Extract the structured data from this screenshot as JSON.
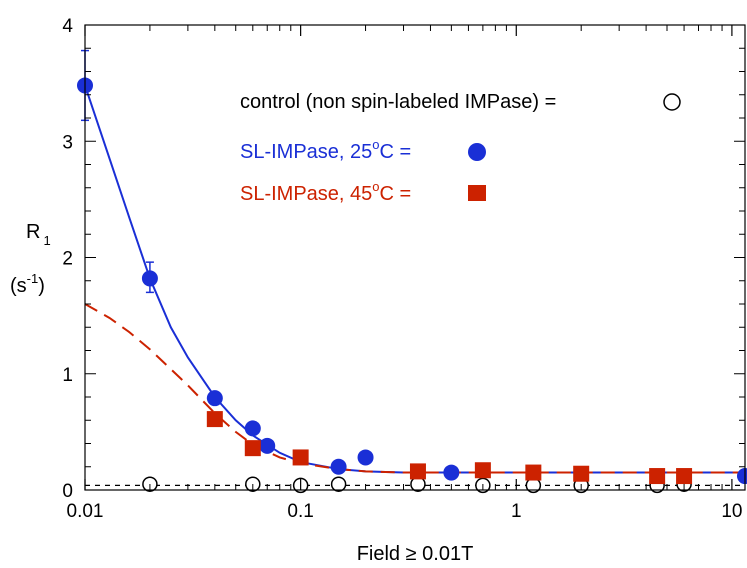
{
  "chart_data": {
    "type": "scatter",
    "title": "",
    "xlabel": "Field ≥ 0.01T",
    "ylabel": "R",
    "ylabel_sub": "1",
    "yunit_open": "(s",
    "yunit_sup": "-1",
    "yunit_close": ")",
    "x_scale": "log",
    "xlim": [
      0.01,
      11.5
    ],
    "ylim": [
      0,
      4
    ],
    "grid": false,
    "legend_position": "top-right",
    "x_ticks": [
      {
        "value": 0.01,
        "label": "0.01"
      },
      {
        "value": 0.1,
        "label": "0.1"
      },
      {
        "value": 1,
        "label": "1"
      },
      {
        "value": 10,
        "label": "10"
      }
    ],
    "y_ticks": [
      {
        "value": 0,
        "label": "0"
      },
      {
        "value": 1,
        "label": "1"
      },
      {
        "value": 2,
        "label": "2"
      },
      {
        "value": 3,
        "label": "3"
      },
      {
        "value": 4,
        "label": "4"
      }
    ],
    "series": [
      {
        "name": "control (non spin-labeled IMPase)",
        "marker": "open-circle",
        "color": "#000000",
        "x": [
          0.02,
          0.06,
          0.1,
          0.15,
          0.35,
          0.7,
          1.2,
          2.0,
          4.5,
          6.0,
          11.5
        ],
        "y": [
          0.05,
          0.05,
          0.04,
          0.05,
          0.05,
          0.04,
          0.04,
          0.04,
          0.04,
          0.05,
          0.12
        ]
      },
      {
        "name": "SL-IMPase, 25°C",
        "marker": "filled-circle",
        "color": "#1a2fd6",
        "x": [
          0.01,
          0.02,
          0.04,
          0.06,
          0.07,
          0.15,
          0.2,
          0.5,
          11.5
        ],
        "y": [
          3.48,
          1.82,
          0.79,
          0.53,
          0.38,
          0.2,
          0.28,
          0.15,
          0.12
        ],
        "error_bars": [
          {
            "x": 0.01,
            "low": 3.18,
            "high": 3.78
          },
          {
            "x": 0.02,
            "low": 1.7,
            "high": 1.96
          }
        ]
      },
      {
        "name": "SL-IMPase, 45°C",
        "marker": "filled-square",
        "color": "#cc2200",
        "x": [
          0.04,
          0.06,
          0.1,
          0.35,
          0.7,
          1.2,
          2.0,
          4.5,
          6.0
        ],
        "y": [
          0.61,
          0.36,
          0.28,
          0.16,
          0.17,
          0.15,
          0.14,
          0.12,
          0.12
        ]
      }
    ],
    "fit_curves": [
      {
        "style": "solid",
        "color": "#1a2fd6",
        "x": [
          0.01,
          0.013,
          0.016,
          0.02,
          0.025,
          0.03,
          0.04,
          0.05,
          0.06,
          0.08,
          0.1,
          0.15,
          0.2,
          0.3,
          0.5,
          1,
          2,
          5,
          11.5
        ],
        "y": [
          3.48,
          2.85,
          2.35,
          1.82,
          1.4,
          1.14,
          0.8,
          0.6,
          0.47,
          0.32,
          0.24,
          0.18,
          0.16,
          0.15,
          0.15,
          0.15,
          0.15,
          0.15,
          0.15
        ]
      },
      {
        "style": "dashed",
        "color": "#cc2200",
        "x": [
          0.01,
          0.013,
          0.016,
          0.02,
          0.025,
          0.03,
          0.04,
          0.05,
          0.06,
          0.08,
          0.1,
          0.15,
          0.2,
          0.3,
          0.5,
          1,
          2,
          5,
          11.5
        ],
        "y": [
          1.6,
          1.48,
          1.36,
          1.21,
          1.04,
          0.9,
          0.66,
          0.5,
          0.39,
          0.28,
          0.23,
          0.18,
          0.16,
          0.15,
          0.15,
          0.15,
          0.15,
          0.15,
          0.15
        ]
      }
    ],
    "baseline": {
      "y": 0.04,
      "style": "dashed",
      "color": "#000000"
    },
    "legend": [
      {
        "text": "control (non spin-labeled IMPase) =",
        "color": "#000000",
        "marker": "open-circle"
      },
      {
        "text": "SL-IMPase, 25",
        "sup": "o",
        "suffix": "C =",
        "color": "#1a2fd6",
        "marker": "filled-circle"
      },
      {
        "text": "SL-IMPase, 45",
        "sup": "o",
        "suffix": "C =",
        "color": "#cc2200",
        "marker": "filled-square"
      }
    ]
  }
}
